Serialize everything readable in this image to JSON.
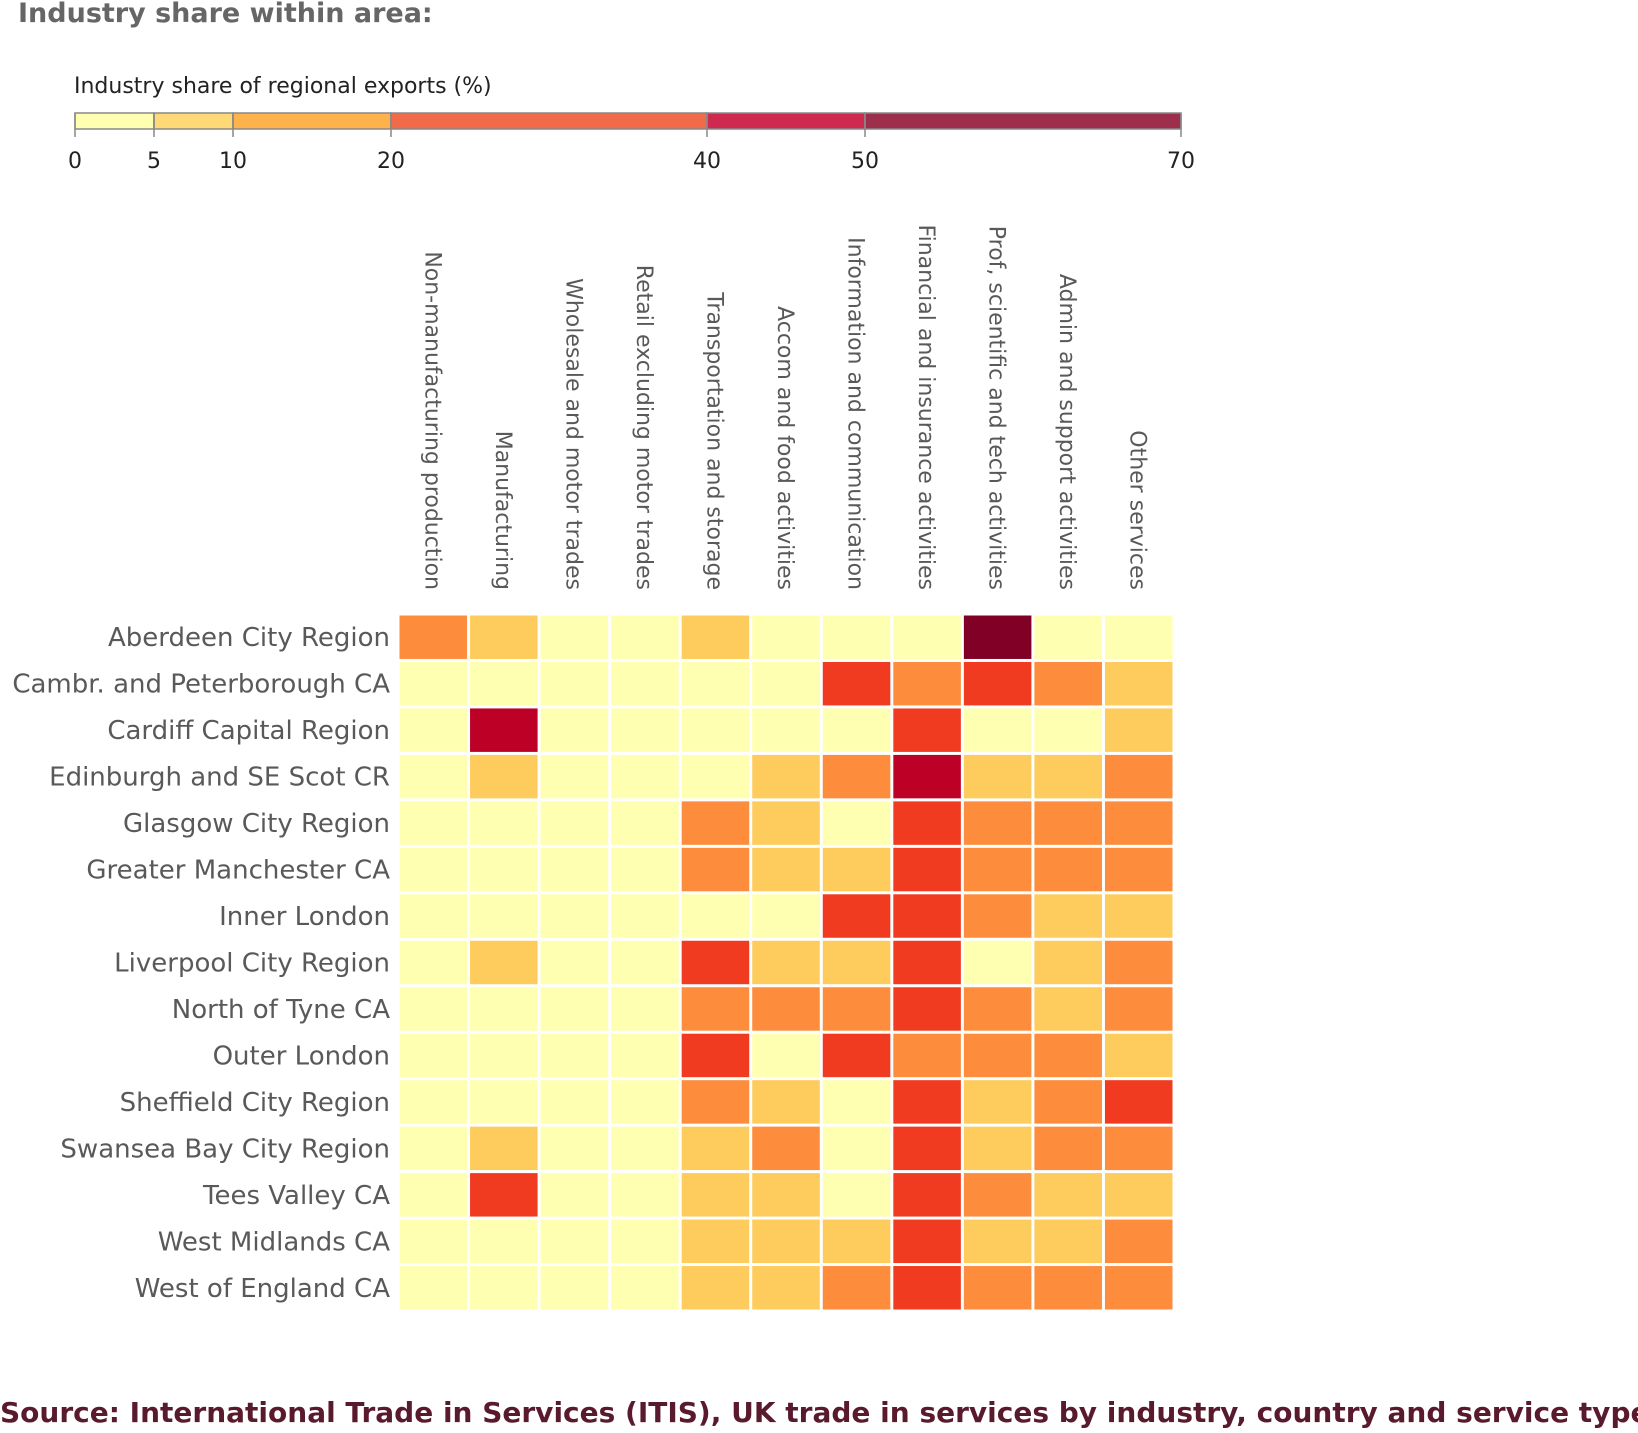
{
  "title": "Industry share within area:",
  "source": "Source: International Trade in Services (ITIS), UK trade in services by industry, country and service type",
  "legend": {
    "title": "Industry share of regional exports (%)",
    "breaks": [
      0,
      5,
      10,
      20,
      40,
      50,
      70
    ],
    "colors": [
      "#ffffb2",
      "#fed976",
      "#feb24c",
      "#f16a4a",
      "#d0294f",
      "#9e2f4c"
    ]
  },
  "chart_data": {
    "type": "heatmap",
    "title": "Industry share within area:",
    "legend_title": "Industry share of regional exports (%)",
    "value_unit": "%",
    "scale_breaks": [
      0,
      5,
      10,
      20,
      40,
      50,
      70
    ],
    "columns": [
      "Non-manufacturing production",
      "Manufacturing",
      "Wholesale and motor trades",
      "Retail excluding motor trades",
      "Transportation and storage",
      "Accom and food activities",
      "Information and communication",
      "Financial and insurance activities",
      "Prof, scientific and tech activities",
      "Admin and support activities",
      "Other services"
    ],
    "rows": [
      "Aberdeen City Region",
      "Cambr. and Peterborough CA",
      "Cardiff Capital Region",
      "Edinburgh and SE Scot CR",
      "Glasgow City Region",
      "Greater Manchester CA",
      "Inner London",
      "Liverpool City Region",
      "North of Tyne CA",
      "Outer London",
      "Sheffield City Region",
      "Swansea Bay City Region",
      "Tees Valley CA",
      "West Midlands CA",
      "West of England CA"
    ],
    "values": [
      [
        15,
        8,
        2,
        2,
        8,
        2,
        2,
        2,
        65,
        2,
        2
      ],
      [
        2,
        2,
        2,
        2,
        2,
        2,
        25,
        15,
        25,
        15,
        8
      ],
      [
        2,
        45,
        2,
        2,
        2,
        2,
        2,
        25,
        2,
        2,
        8
      ],
      [
        2,
        8,
        2,
        2,
        2,
        8,
        15,
        45,
        8,
        8,
        15
      ],
      [
        2,
        2,
        2,
        2,
        15,
        8,
        2,
        25,
        15,
        15,
        15
      ],
      [
        2,
        2,
        2,
        2,
        15,
        8,
        8,
        25,
        15,
        15,
        15
      ],
      [
        2,
        2,
        2,
        2,
        2,
        2,
        25,
        25,
        15,
        8,
        8
      ],
      [
        2,
        8,
        2,
        2,
        25,
        8,
        8,
        25,
        2,
        8,
        15
      ],
      [
        2,
        2,
        2,
        2,
        15,
        15,
        15,
        25,
        15,
        8,
        15
      ],
      [
        2,
        2,
        2,
        2,
        25,
        2,
        25,
        15,
        15,
        15,
        8
      ],
      [
        2,
        2,
        2,
        2,
        15,
        8,
        2,
        25,
        8,
        15,
        25
      ],
      [
        2,
        8,
        2,
        2,
        8,
        15,
        2,
        25,
        8,
        15,
        15
      ],
      [
        2,
        25,
        2,
        2,
        8,
        8,
        2,
        25,
        15,
        8,
        8
      ],
      [
        2,
        2,
        2,
        2,
        8,
        8,
        8,
        25,
        8,
        8,
        15
      ],
      [
        2,
        2,
        2,
        2,
        8,
        8,
        15,
        25,
        15,
        15,
        15
      ]
    ]
  }
}
